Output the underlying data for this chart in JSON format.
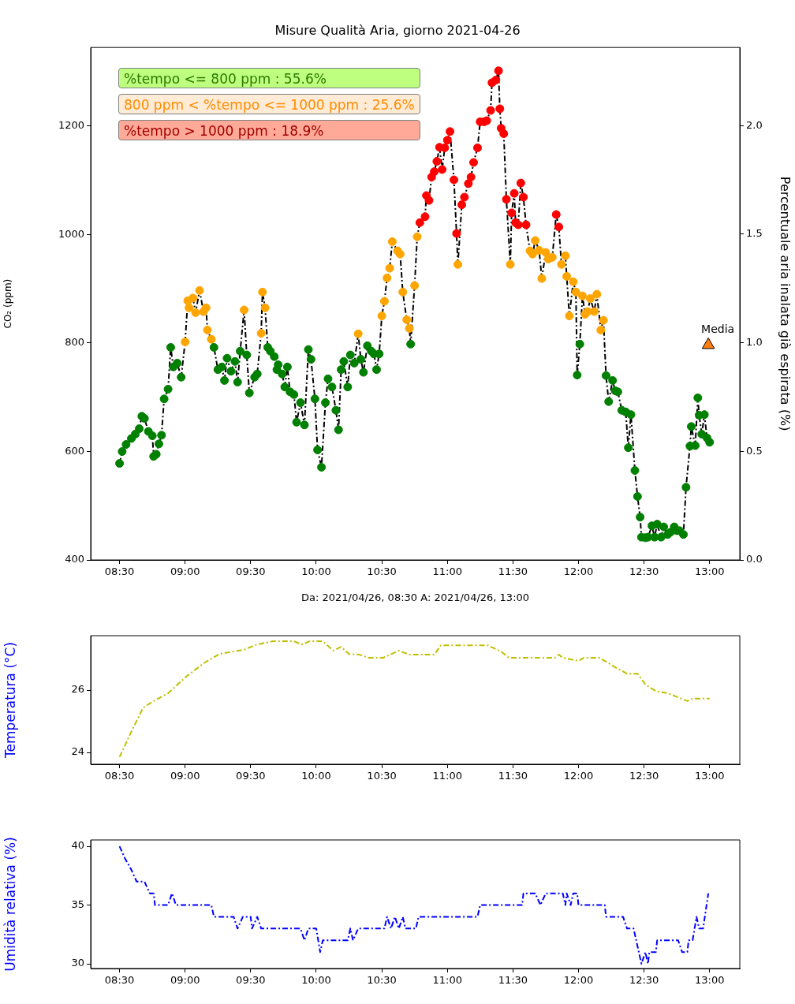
{
  "chart_data": [
    {
      "type": "line",
      "title": "Misure Qualità Aria, giorno 2021-04-26",
      "xlabel": "Da: 2021/04/26, 08:30 A: 2021/04/26, 13:00",
      "ylabel": "CO₂ (ppm)",
      "y2label": "Percentuale aria inalata già espirata (%)",
      "annotations": [
        "%tempo <= 800 ppm : 55.6%",
        "800 ppm < %tempo <= 1000 ppm : 25.6%",
        "%tempo > 1000 ppm : 18.9%"
      ],
      "xlim": [
        8.28,
        13.23
      ],
      "xticks": [
        {
          "value": 8.5,
          "label": "08:30"
        },
        {
          "value": 9,
          "label": "09:00"
        },
        {
          "value": 9.5,
          "label": "09:30"
        },
        {
          "value": 10,
          "label": "10:00"
        },
        {
          "value": 10.5,
          "label": "10:30"
        },
        {
          "value": 11,
          "label": "11:00"
        },
        {
          "value": 11.5,
          "label": "11:30"
        },
        {
          "value": 12,
          "label": "12:00"
        },
        {
          "value": 12.5,
          "label": "12:30"
        },
        {
          "value": 13,
          "label": "13:00"
        }
      ],
      "ylim": [
        400,
        1345
      ],
      "yticks": [
        400,
        600,
        800,
        1000,
        1200
      ],
      "y2lim": [
        0,
        2.36
      ],
      "y2ticks": [
        {
          "value": 0,
          "label": "0.0"
        },
        0.5,
        {
          "value": 1,
          "label": "1.0"
        },
        1.5,
        {
          "value": 2,
          "label": "2.0"
        }
      ],
      "marker": "circle",
      "line_style": "dashed",
      "series": [
        {
          "color": "#000000",
          "x": [
            8.5,
            8.52,
            8.55,
            8.59,
            8.62,
            8.65,
            8.67,
            8.69,
            8.72,
            8.75,
            8.76,
            8.78,
            8.8,
            8.82,
            8.84,
            8.87,
            8.89,
            8.91,
            8.94,
            8.97,
            9,
            9.02,
            9.03,
            9.06,
            9.08,
            9.11,
            9.14,
            9.16,
            9.17,
            9.2,
            9.22,
            9.25,
            9.28,
            9.3,
            9.32,
            9.35,
            9.38,
            9.4,
            9.42,
            9.45,
            9.47,
            9.49,
            9.53,
            9.55,
            9.58,
            9.59,
            9.61,
            9.63,
            9.65,
            9.68,
            9.7,
            9.71,
            9.74,
            9.76,
            9.78,
            9.8,
            9.83,
            9.85,
            9.88,
            9.91,
            9.94,
            9.96,
            9.99,
            10.01,
            10.04,
            10.07,
            10.09,
            10.12,
            10.15,
            10.17,
            10.19,
            10.21,
            10.24,
            10.26,
            10.29,
            10.32,
            10.34,
            10.36,
            10.39,
            10.42,
            10.44,
            10.46,
            10.48,
            10.5,
            10.52,
            10.54,
            10.56,
            10.58,
            10.62,
            10.64,
            10.66,
            10.69,
            10.71,
            10.72,
            10.75,
            10.77,
            10.79,
            10.83,
            10.84,
            10.86,
            10.88,
            10.9,
            10.92,
            10.94,
            10.96,
            10.98,
            11,
            11.02,
            11.05,
            11.07,
            11.08,
            11.11,
            11.13,
            11.16,
            11.18,
            11.2,
            11.23,
            11.25,
            11.28,
            11.3,
            11.33,
            11.34,
            11.37,
            11.39,
            11.4,
            11.41,
            11.43,
            11.45,
            11.48,
            11.49,
            11.51,
            11.52,
            11.54,
            11.56,
            11.58,
            11.6,
            11.63,
            11.65,
            11.67,
            11.7,
            11.72,
            11.75,
            11.77,
            11.8,
            11.83,
            11.85,
            11.87,
            11.9,
            11.91,
            11.93,
            11.96,
            11.98,
            11.99,
            12.01,
            12.03,
            12.05,
            12.07,
            12.09,
            12.12,
            12.14,
            12.17,
            12.19,
            12.21,
            12.23,
            12.26,
            12.28,
            12.3,
            12.33,
            12.36,
            12.38,
            12.4,
            12.43,
            12.45,
            12.47,
            12.48,
            12.51,
            12.53,
            12.56,
            12.58,
            12.6,
            12.63,
            12.65,
            12.68,
            12.7,
            12.73,
            12.75,
            12.77,
            12.8,
            12.82,
            12.85,
            12.86,
            12.89,
            12.91,
            12.92,
            12.94,
            12.96,
            12.98,
            13
          ],
          "values": [
            578,
            600,
            613,
            624,
            632,
            642,
            665,
            661,
            637,
            629,
            591,
            595,
            614,
            630,
            697,
            715,
            792,
            756,
            763,
            737,
            802,
            878,
            865,
            883,
            856,
            897,
            858,
            865,
            824,
            807,
            792,
            751,
            756,
            731,
            772,
            748,
            766,
            728,
            785,
            861,
            778,
            708,
            737,
            743,
            818,
            894,
            865,
            792,
            785,
            775,
            751,
            760,
            743,
            719,
            756,
            710,
            705,
            654,
            690,
            649,
            788,
            770,
            697,
            603,
            571,
            690,
            734,
            719,
            676,
            640,
            751,
            766,
            719,
            778,
            763,
            817,
            770,
            746,
            795,
            785,
            780,
            751,
            780,
            850,
            877,
            920,
            938,
            987,
            970,
            964,
            894,
            843,
            827,
            798,
            906,
            996,
            1022,
            1033,
            1072,
            1063,
            1106,
            1116,
            1135,
            1161,
            1120,
            1160,
            1174,
            1190,
            1101,
            1002,
            945,
            1055,
            1069,
            1094,
            1106,
            1133,
            1160,
            1208,
            1208,
            1210,
            1229,
            1280,
            1285,
            1302,
            1232,
            1196,
            1186,
            1065,
            945,
            1040,
            1076,
            1022,
            1018,
            1095,
            1069,
            1018,
            970,
            964,
            989,
            971,
            919,
            967,
            955,
            958,
            1037,
            1014,
            945,
            961,
            923,
            850,
            913,
            894,
            741,
            798,
            887,
            853,
            858,
            882,
            858,
            890,
            824,
            842,
            740,
            692,
            731,
            712,
            710,
            676,
            673,
            607,
            668,
            565,
            517,
            479,
            442,
            441,
            442,
            463,
            442,
            466,
            442,
            461,
            447,
            451,
            461,
            454,
            454,
            447,
            534,
            610,
            646,
            611,
            699,
            667,
            632,
            668,
            625,
            617
          ],
          "colors": [
            "#008000",
            "#008000",
            "#008000",
            "#008000",
            "#008000",
            "#008000",
            "#008000",
            "#008000",
            "#008000",
            "#008000",
            "#008000",
            "#008000",
            "#008000",
            "#008000",
            "#008000",
            "#008000",
            "#008000",
            "#008000",
            "#008000",
            "#008000",
            "#ffa500",
            "#ffa500",
            "#ffa500",
            "#ffa500",
            "#ffa500",
            "#ffa500",
            "#ffa500",
            "#ffa500",
            "#ffa500",
            "#ffa500",
            "#008000",
            "#008000",
            "#008000",
            "#008000",
            "#008000",
            "#008000",
            "#008000",
            "#008000",
            "#008000",
            "#ffa500",
            "#008000",
            "#008000",
            "#008000",
            "#008000",
            "#ffa500",
            "#ffa500",
            "#ffa500",
            "#008000",
            "#008000",
            "#008000",
            "#008000",
            "#008000",
            "#008000",
            "#008000",
            "#008000",
            "#008000",
            "#008000",
            "#008000",
            "#008000",
            "#008000",
            "#008000",
            "#008000",
            "#008000",
            "#008000",
            "#008000",
            "#008000",
            "#008000",
            "#008000",
            "#008000",
            "#008000",
            "#008000",
            "#008000",
            "#008000",
            "#008000",
            "#008000",
            "#ffa500",
            "#008000",
            "#008000",
            "#008000",
            "#008000",
            "#008000",
            "#008000",
            "#008000",
            "#ffa500",
            "#ffa500",
            "#ffa500",
            "#ffa500",
            "#ffa500",
            "#ffa500",
            "#ffa500",
            "#ffa500",
            "#ffa500",
            "#ffa500",
            "#008000",
            "#ffa500",
            "#ffa500",
            "#ff0000",
            "#ff0000",
            "#ff0000",
            "#ff0000",
            "#ff0000",
            "#ff0000",
            "#ff0000",
            "#ff0000",
            "#ff0000",
            "#ff0000",
            "#ff0000",
            "#ff0000",
            "#ff0000",
            "#ff0000",
            "#ffa500",
            "#ff0000",
            "#ff0000",
            "#ff0000",
            "#ff0000",
            "#ff0000",
            "#ff0000",
            "#ff0000",
            "#ff0000",
            "#ff0000",
            "#ff0000",
            "#ff0000",
            "#ff0000",
            "#ff0000",
            "#ff0000",
            "#ff0000",
            "#ff0000",
            "#ff0000",
            "#ffa500",
            "#ff0000",
            "#ff0000",
            "#ff0000",
            "#ff0000",
            "#ff0000",
            "#ff0000",
            "#ff0000",
            "#ffa500",
            "#ffa500",
            "#ffa500",
            "#ffa500",
            "#ffa500",
            "#ffa500",
            "#ffa500",
            "#ffa500",
            "#ff0000",
            "#ff0000",
            "#ffa500",
            "#ffa500",
            "#ffa500",
            "#ffa500",
            "#ffa500",
            "#ffa500",
            "#008000",
            "#008000",
            "#ffa500",
            "#ffa500",
            "#ffa500",
            "#ffa500",
            "#ffa500",
            "#ffa500",
            "#ffa500",
            "#ffa500",
            "#008000",
            "#008000",
            "#008000",
            "#008000",
            "#008000",
            "#008000",
            "#008000",
            "#008000",
            "#008000",
            "#008000",
            "#008000",
            "#008000",
            "#008000",
            "#008000",
            "#008000",
            "#008000",
            "#008000",
            "#008000",
            "#008000",
            "#008000",
            "#008000",
            "#008000",
            "#008000",
            "#008000",
            "#008000",
            "#008000",
            "#008000",
            "#008000",
            "#008000",
            "#008000",
            "#008000",
            "#008000",
            "#008000",
            "#008000",
            "#008000",
            "#008000"
          ]
        },
        {
          "type": "scatter",
          "name": "Media",
          "axis": "y2",
          "color": "#ff7f0e",
          "marker": "triangle",
          "x": [
            12.99
          ],
          "values": [
            0.99
          ]
        }
      ]
    },
    {
      "type": "line",
      "ylabel": "Temperatura (°C)",
      "xlim": [
        8.28,
        13.23
      ],
      "xticks": [
        {
          "value": 8.5,
          "label": "08:30"
        },
        {
          "value": 9,
          "label": "09:00"
        },
        {
          "value": 9.5,
          "label": "09:30"
        },
        {
          "value": 10,
          "label": "10:00"
        },
        {
          "value": 10.5,
          "label": "10:30"
        },
        {
          "value": 11,
          "label": "11:00"
        },
        {
          "value": 11.5,
          "label": "11:30"
        },
        {
          "value": 12,
          "label": "12:00"
        },
        {
          "value": 12.5,
          "label": "12:30"
        },
        {
          "value": 13,
          "label": "13:00"
        }
      ],
      "ylim": [
        23.62,
        27.75
      ],
      "yticks": [
        24,
        26
      ],
      "line_style": "dashed",
      "series": [
        {
          "color": "#bfbf00",
          "x": [
            8.5,
            8.58,
            8.68,
            8.76,
            8.87,
            9.01,
            9.14,
            9.26,
            9.45,
            9.55,
            9.67,
            9.83,
            9.89,
            9.95,
            10.05,
            10.13,
            10.19,
            10.25,
            10.33,
            10.4,
            10.51,
            10.63,
            10.71,
            10.9,
            10.95,
            11.31,
            11.41,
            11.47,
            11.82,
            11.85,
            11.88,
            12,
            12.04,
            12.16,
            12.24,
            12.29,
            12.37,
            12.45,
            12.51,
            12.59,
            12.68,
            12.76,
            12.83,
            12.87,
            13
          ],
          "values": [
            23.85,
            24.58,
            25.44,
            25.65,
            25.9,
            26.44,
            26.86,
            27.16,
            27.3,
            27.47,
            27.57,
            27.57,
            27.47,
            27.57,
            27.57,
            27.27,
            27.39,
            27.16,
            27.14,
            27.04,
            27.04,
            27.27,
            27.14,
            27.14,
            27.44,
            27.44,
            27.24,
            27.04,
            27.04,
            27.14,
            27.04,
            26.94,
            27.04,
            27.04,
            26.84,
            26.71,
            26.53,
            26.53,
            26.18,
            25.97,
            25.9,
            25.77,
            25.65,
            25.73,
            25.73
          ]
        }
      ]
    },
    {
      "type": "line",
      "ylabel": "Umidità relativa (%)",
      "xlim": [
        8.28,
        13.23
      ],
      "xticks": [
        {
          "value": 8.5,
          "label": "08:30"
        },
        {
          "value": 9,
          "label": "09:00"
        },
        {
          "value": 9.5,
          "label": "09:30"
        },
        {
          "value": 10,
          "label": "10:00"
        },
        {
          "value": 10.5,
          "label": "10:30"
        },
        {
          "value": 11,
          "label": "11:00"
        },
        {
          "value": 11.5,
          "label": "11:30"
        },
        {
          "value": 12,
          "label": "12:00"
        },
        {
          "value": 12.5,
          "label": "12:30"
        },
        {
          "value": 13,
          "label": "13:00"
        }
      ],
      "ylim": [
        29.6,
        40.54
      ],
      "yticks": [
        30,
        35,
        40
      ],
      "line_style": "dashed",
      "series": [
        {
          "color": "#0000ff",
          "x": [
            8.5,
            8.54,
            8.59,
            8.63,
            8.69,
            8.73,
            8.76,
            8.77,
            8.87,
            8.9,
            8.93,
            9.2,
            9.22,
            9.37,
            9.4,
            9.44,
            9.5,
            9.51,
            9.55,
            9.58,
            9.88,
            9.91,
            9.94,
            10,
            10.03,
            10.05,
            10.24,
            10.26,
            10.28,
            10.32,
            10.52,
            10.54,
            10.57,
            10.6,
            10.63,
            10.66,
            10.68,
            10.76,
            10.78,
            11.23,
            11.25,
            11.57,
            11.58,
            11.67,
            11.71,
            11.75,
            11.88,
            11.9,
            11.91,
            11.94,
            11.96,
            11.99,
            12,
            12.04,
            12.2,
            12.21,
            12.34,
            12.37,
            12.42,
            12.46,
            12.48,
            12.51,
            12.53,
            12.54,
            12.59,
            12.6,
            12.76,
            12.79,
            12.83,
            12.84,
            12.87,
            12.9,
            12.92,
            12.95,
            12.99
          ],
          "values": [
            40,
            39,
            38,
            37,
            37,
            36,
            36,
            35,
            35,
            36,
            35,
            35,
            34,
            34,
            33,
            34,
            34,
            33,
            34,
            33,
            33,
            32,
            33,
            33,
            31,
            32,
            32,
            33,
            32,
            33,
            33,
            34,
            33,
            34,
            33,
            34,
            33,
            33,
            34,
            34,
            35,
            35,
            36,
            36,
            35,
            36,
            36,
            35,
            36,
            35,
            36,
            36,
            35,
            35,
            35,
            34,
            34,
            33,
            33,
            31,
            30,
            31,
            30,
            31,
            31,
            32,
            32,
            31,
            31,
            32,
            32,
            34,
            33,
            33,
            36
          ]
        }
      ]
    }
  ]
}
